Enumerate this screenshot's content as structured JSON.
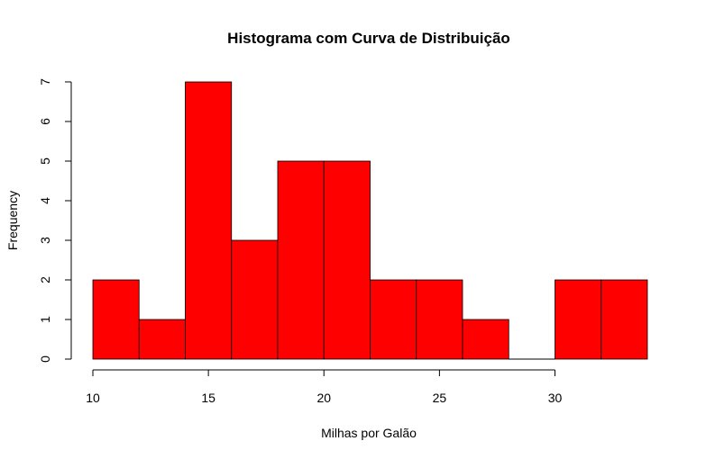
{
  "chart_data": {
    "type": "bar",
    "subtype": "histogram",
    "title": "Histograma com Curva de Distribuição",
    "xlabel": "Milhas por Galão",
    "ylabel": "Frequency",
    "bin_edges": [
      10,
      12,
      14,
      16,
      18,
      20,
      22,
      24,
      26,
      28,
      30,
      32,
      34
    ],
    "values": [
      2,
      1,
      7,
      3,
      5,
      5,
      2,
      2,
      1,
      0,
      2,
      2
    ],
    "xlim": [
      10,
      34
    ],
    "ylim": [
      0,
      7
    ],
    "x_ticks": [
      "10",
      "15",
      "20",
      "25",
      "30"
    ],
    "y_ticks": [
      "0",
      "1",
      "2",
      "3",
      "4",
      "5",
      "6",
      "7"
    ],
    "grid": false,
    "legend": "none",
    "colors": {
      "bar_fill": "#ff0000",
      "bar_stroke": "#000000"
    }
  }
}
